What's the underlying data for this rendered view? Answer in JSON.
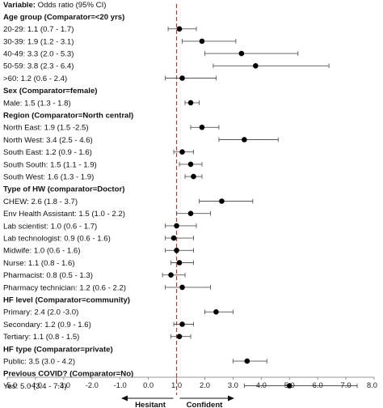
{
  "chart_data": {
    "type": "forest",
    "title": "",
    "column_header": {
      "label": "Variable:",
      "text": "Odds ratio (95% CI)"
    },
    "xlim": [
      -5.0,
      8.0
    ],
    "x_ticks": [
      "-5.0",
      "-4.0",
      "-3.0",
      "-2.0",
      "-1.0",
      "0.0",
      "1.0",
      "2.0",
      "3.0",
      "4.0",
      "5.0",
      "6.0",
      "7.0",
      "8.0"
    ],
    "reference_line": 1.0,
    "reference_line_color": "#c0392b",
    "marker_color": "#000000",
    "direction_labels": {
      "left": "Hesitant",
      "right": "Confident"
    },
    "rows": [
      {
        "kind": "header",
        "text": "Age group (Comparator=<20 yrs)"
      },
      {
        "kind": "item",
        "text": "20-29: 1.1 (0.7 - 1.7)",
        "or": 1.1,
        "lo": 0.7,
        "hi": 1.7
      },
      {
        "kind": "item",
        "text": "30-39: 1.9 (1.2 - 3.1)",
        "or": 1.9,
        "lo": 1.2,
        "hi": 3.1
      },
      {
        "kind": "item",
        "text": "40-49: 3.3 (2.0 - 5.3)",
        "or": 3.3,
        "lo": 2.0,
        "hi": 5.3
      },
      {
        "kind": "item",
        "text": "50-59: 3.8 (2.3 - 6.4)",
        "or": 3.8,
        "lo": 2.3,
        "hi": 6.4
      },
      {
        "kind": "item",
        "text": ">60: 1.2 (0.6 - 2.4)",
        "or": 1.2,
        "lo": 0.6,
        "hi": 2.4
      },
      {
        "kind": "header",
        "text": "Sex (Comparator=female)"
      },
      {
        "kind": "item",
        "text": "Male: 1.5 (1.3 - 1.8)",
        "or": 1.5,
        "lo": 1.3,
        "hi": 1.8
      },
      {
        "kind": "header",
        "text": "Region (Comparator=North central)"
      },
      {
        "kind": "item",
        "text": "North East: 1.9 (1.5 -2.5)",
        "or": 1.9,
        "lo": 1.5,
        "hi": 2.5
      },
      {
        "kind": "item",
        "text": "North West: 3.4 (2.5 - 4.6)",
        "or": 3.4,
        "lo": 2.5,
        "hi": 4.6
      },
      {
        "kind": "item",
        "text": "South East: 1.2 (0.9 - 1.6)",
        "or": 1.2,
        "lo": 0.9,
        "hi": 1.6
      },
      {
        "kind": "item",
        "text": "South South: 1.5 (1.1 - 1.9)",
        "or": 1.5,
        "lo": 1.1,
        "hi": 1.9
      },
      {
        "kind": "item",
        "text": "South West: 1.6 (1.3 - 1.9)",
        "or": 1.6,
        "lo": 1.3,
        "hi": 1.9
      },
      {
        "kind": "header",
        "text": "Type of HW (comparator=Doctor)"
      },
      {
        "kind": "item",
        "text": "CHEW: 2.6 (1.8 - 3.7)",
        "or": 2.6,
        "lo": 1.8,
        "hi": 3.7
      },
      {
        "kind": "item",
        "text": "Env Health Assistant: 1.5 (1.0 - 2.2)",
        "or": 1.5,
        "lo": 1.0,
        "hi": 2.2
      },
      {
        "kind": "item",
        "text": "Lab scientist: 1.0 (0.6 - 1.7)",
        "or": 1.0,
        "lo": 0.6,
        "hi": 1.7
      },
      {
        "kind": "item",
        "text": "Lab technologist: 0.9 (0.6 - 1.6)",
        "or": 0.9,
        "lo": 0.6,
        "hi": 1.6
      },
      {
        "kind": "item",
        "text": "Midwife: 1.0 (0.6 - 1.6)",
        "or": 1.0,
        "lo": 0.6,
        "hi": 1.6
      },
      {
        "kind": "item",
        "text": "Nurse: 1.1 (0.8 - 1.6)",
        "or": 1.1,
        "lo": 0.8,
        "hi": 1.6
      },
      {
        "kind": "item",
        "text": "Pharmacist: 0.8 (0.5 - 1.3)",
        "or": 0.8,
        "lo": 0.5,
        "hi": 1.3
      },
      {
        "kind": "item",
        "text": "Pharmacy technician: 1.2 (0.6 - 2.2)",
        "or": 1.2,
        "lo": 0.6,
        "hi": 2.2
      },
      {
        "kind": "header",
        "text": "HF level (Comparator=community)"
      },
      {
        "kind": "item",
        "text": "Primary: 2.4 (2.0 -3.0)",
        "or": 2.4,
        "lo": 2.0,
        "hi": 3.0
      },
      {
        "kind": "item",
        "text": "Secondary: 1.2 (0.9 - 1.6)",
        "or": 1.2,
        "lo": 0.9,
        "hi": 1.6
      },
      {
        "kind": "item",
        "text": "Tertiary: 1.1 (0.8 - 1.5)",
        "or": 1.1,
        "lo": 0.8,
        "hi": 1.5
      },
      {
        "kind": "header",
        "text": "HF type (Comparator=private)"
      },
      {
        "kind": "item",
        "text": "Public: 3.5 (3.0 - 4.2)",
        "or": 3.5,
        "lo": 3.0,
        "hi": 4.2
      },
      {
        "kind": "header",
        "text": "Previous COVID? (Comparator=No)"
      },
      {
        "kind": "item",
        "text": "Yes: 5.0 (3.4 - 7.4)",
        "or": 5.0,
        "lo": 3.4,
        "hi": 7.4
      }
    ]
  }
}
